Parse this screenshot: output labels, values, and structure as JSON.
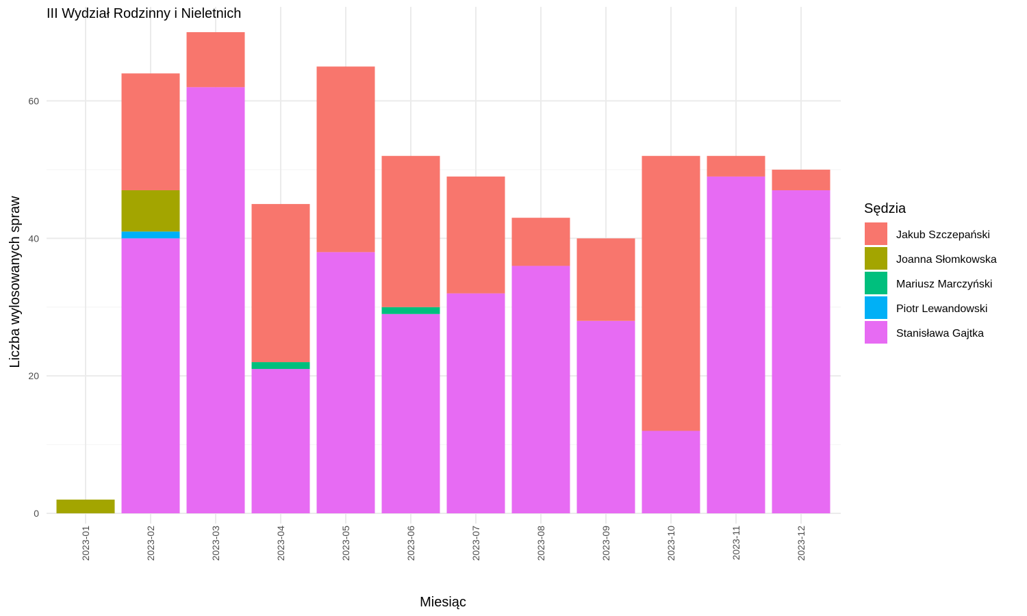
{
  "chart_data": {
    "type": "bar",
    "stacked": true,
    "title": "III Wydział Rodzinny i Nieletnich",
    "xlabel": "Miesiąc",
    "ylabel": "Liczba wylosowanych spraw",
    "ylim": [
      0,
      70
    ],
    "yticks": [
      0,
      20,
      40,
      60
    ],
    "grid": true,
    "legend_position": "right",
    "legend_title": "Sędzia",
    "categories": [
      "2023-01",
      "2023-02",
      "2023-03",
      "2023-04",
      "2023-05",
      "2023-06",
      "2023-07",
      "2023-08",
      "2023-09",
      "2023-10",
      "2023-11",
      "2023-12"
    ],
    "series": [
      {
        "name": "Jakub Szczepański",
        "color": "#F8766D",
        "values": [
          0,
          17,
          8,
          23,
          27,
          22,
          17,
          7,
          12,
          40,
          3,
          3
        ]
      },
      {
        "name": "Joanna Słomkowska",
        "color": "#A3A500",
        "values": [
          2,
          6,
          0,
          0,
          0,
          0,
          0,
          0,
          0,
          0,
          0,
          0
        ]
      },
      {
        "name": "Mariusz Marczyński",
        "color": "#00BF7D",
        "values": [
          0,
          0,
          0,
          1,
          0,
          1,
          0,
          0,
          0,
          0,
          0,
          0
        ]
      },
      {
        "name": "Piotr Lewandowski",
        "color": "#00B0F6",
        "values": [
          0,
          1,
          0,
          0,
          0,
          0,
          0,
          0,
          0,
          0,
          0,
          0
        ]
      },
      {
        "name": "Stanisława Gajtka",
        "color": "#E76BF3",
        "values": [
          0,
          40,
          62,
          21,
          38,
          29,
          32,
          36,
          28,
          12,
          49,
          47
        ]
      }
    ]
  }
}
